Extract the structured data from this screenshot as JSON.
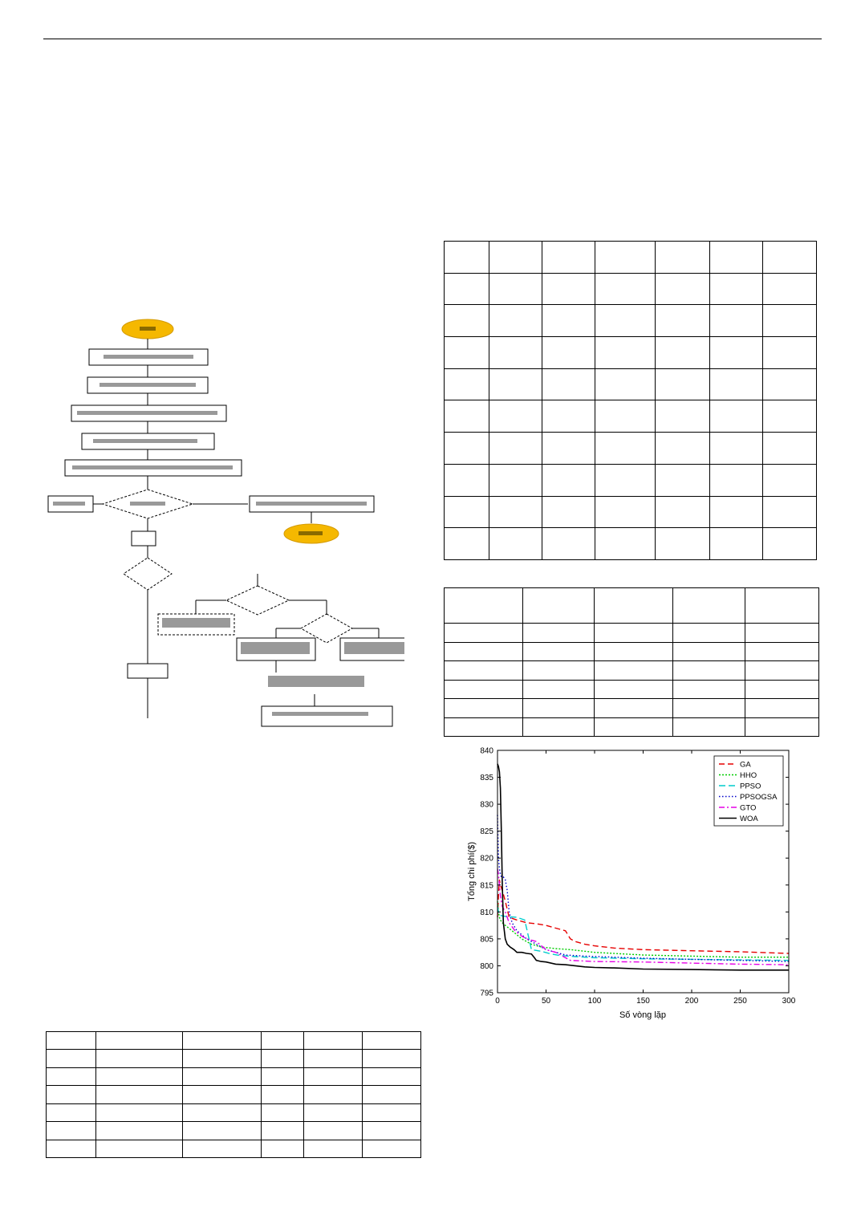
{
  "chart_data": {
    "type": "line",
    "xlabel": "Số vòng lặp",
    "ylabel": "Tổng chi phí($)",
    "xlim": [
      0,
      300
    ],
    "ylim": [
      795,
      840
    ],
    "xticks": [
      "0",
      "50",
      "100",
      "150",
      "200",
      "250",
      "300"
    ],
    "yticks": [
      "795",
      "800",
      "805",
      "810",
      "815",
      "820",
      "825",
      "830",
      "835",
      "840"
    ],
    "legend_position": "top-right",
    "grid": false,
    "series": [
      {
        "name": "GA",
        "color": "#e60000",
        "dash": "7,4",
        "x": [
          0,
          1,
          2,
          3,
          5,
          8,
          12,
          20,
          30,
          40,
          50,
          60,
          70,
          75,
          80,
          90,
          100,
          120,
          150,
          200,
          250,
          300
        ],
        "y": [
          809,
          813,
          816,
          815,
          814,
          812,
          809,
          808.5,
          808,
          807.8,
          807.5,
          807,
          806.5,
          805,
          804.5,
          804,
          803.7,
          803.3,
          803,
          802.8,
          802.6,
          802.3
        ]
      },
      {
        "name": "HHO",
        "color": "#00cc00",
        "dash": "2,2",
        "x": [
          0,
          1,
          2,
          3,
          5,
          8,
          15,
          25,
          35,
          45,
          60,
          75,
          100,
          150,
          200,
          250,
          300
        ],
        "y": [
          812,
          810,
          809,
          808.5,
          808,
          807.5,
          806.5,
          805,
          804,
          803.5,
          803.2,
          803,
          802.5,
          802,
          801.8,
          801.6,
          801.6
        ]
      },
      {
        "name": "PPSO",
        "color": "#00cccc",
        "dash": "8,4",
        "x": [
          0,
          1,
          2,
          4,
          7,
          12,
          20,
          28,
          35,
          45,
          55,
          65,
          80,
          100,
          150,
          200,
          250,
          300
        ],
        "y": [
          811,
          810,
          809.5,
          809.3,
          809.2,
          809.1,
          809,
          808.5,
          803,
          802.7,
          802.2,
          801.9,
          801.7,
          801.5,
          801.3,
          801.2,
          801.1,
          801
        ]
      },
      {
        "name": "PPSOGSA",
        "color": "#0000cc",
        "dash": "1.5,2.5",
        "x": [
          0,
          1,
          2,
          3,
          4,
          6,
          8,
          10,
          12,
          15,
          20,
          30,
          40,
          50,
          70,
          90,
          120,
          150,
          200,
          250,
          300
        ],
        "y": [
          828,
          820,
          818,
          817,
          816.5,
          816.5,
          816,
          814,
          810,
          808,
          806.5,
          805,
          804,
          803,
          802,
          801.8,
          801.6,
          801.4,
          801.2,
          801,
          800.8
        ]
      },
      {
        "name": "GTO",
        "color": "#e600e6",
        "dash": "7,3,2,3",
        "x": [
          0,
          1,
          2,
          3,
          5,
          8,
          12,
          18,
          25,
          30,
          40,
          50,
          60,
          70,
          75,
          100,
          150,
          200,
          250,
          300
        ],
        "y": [
          818,
          817,
          815,
          813,
          811,
          810,
          808,
          806.5,
          805.5,
          805,
          804.5,
          803,
          802.5,
          801.5,
          801,
          800.8,
          800.7,
          800.5,
          800.3,
          800.2
        ]
      },
      {
        "name": "WOA",
        "color": "#000000",
        "dash": "",
        "x": [
          0,
          1,
          2,
          3,
          4,
          5,
          6,
          8,
          10,
          13,
          17,
          20,
          25,
          30,
          35,
          38,
          40,
          45,
          50,
          60,
          70,
          80,
          90,
          100,
          120,
          150,
          200,
          250,
          300
        ],
        "y": [
          837.5,
          837,
          836,
          833,
          825,
          815,
          808,
          805,
          804,
          803.5,
          803,
          802.5,
          802.5,
          802.3,
          802.2,
          801.5,
          801,
          800.8,
          800.7,
          800.3,
          800.2,
          800,
          799.8,
          799.7,
          799.6,
          799.4,
          799.3,
          799.2,
          799.2
        ]
      }
    ]
  }
}
